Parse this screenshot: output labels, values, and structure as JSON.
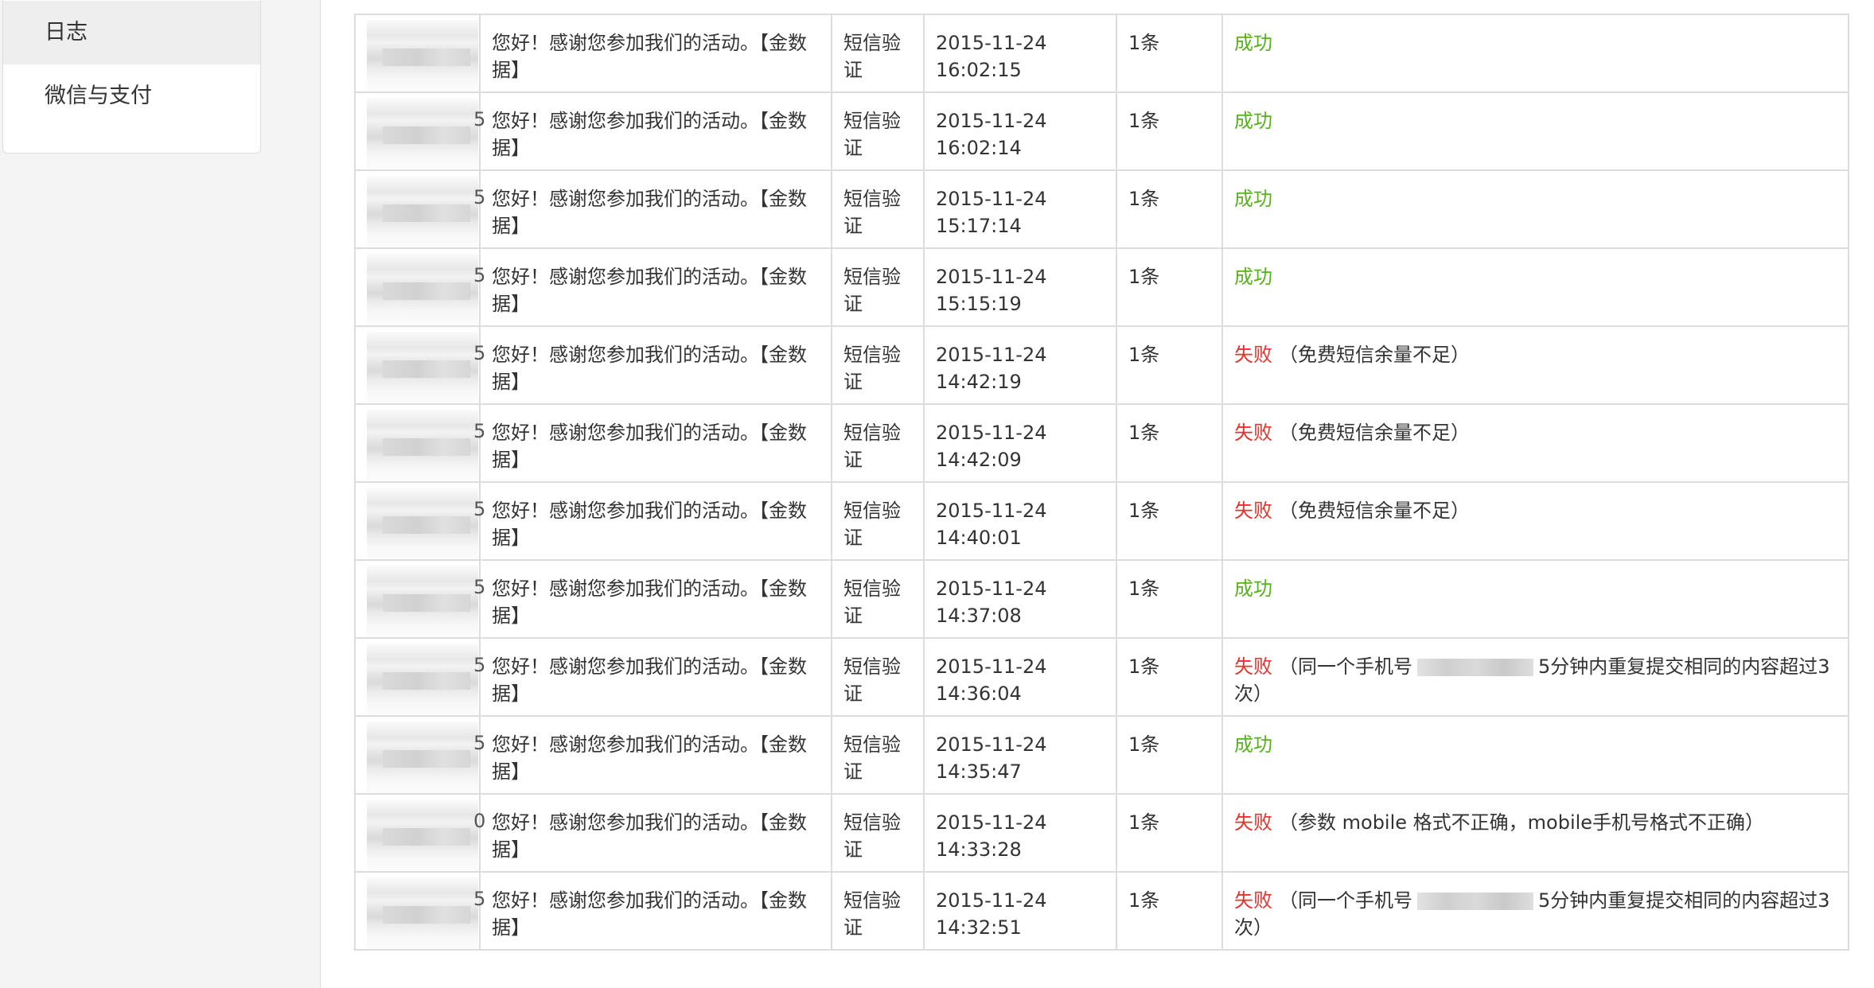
{
  "sidebar": {
    "items": [
      {
        "label": "日志",
        "active": true
      },
      {
        "label": "微信与支付",
        "active": false
      }
    ]
  },
  "colors": {
    "success": "#57b31b",
    "fail": "#e8322b",
    "border": "#dddddd"
  },
  "rows": [
    {
      "phone_tail": "",
      "content": "您好！感谢您参加我们的活动。【金数据】",
      "type": "短信验证",
      "date": "2015-11-24",
      "time": "16:02:15",
      "count": "1条",
      "status": "成功",
      "reason": ""
    },
    {
      "phone_tail": "5",
      "content": "您好！感谢您参加我们的活动。【金数据】",
      "type": "短信验证",
      "date": "2015-11-24",
      "time": "16:02:14",
      "count": "1条",
      "status": "成功",
      "reason": ""
    },
    {
      "phone_tail": "5",
      "content": "您好！感谢您参加我们的活动。【金数据】",
      "type": "短信验证",
      "date": "2015-11-24",
      "time": "15:17:14",
      "count": "1条",
      "status": "成功",
      "reason": ""
    },
    {
      "phone_tail": "5",
      "content": "您好！感谢您参加我们的活动。【金数据】",
      "type": "短信验证",
      "date": "2015-11-24",
      "time": "15:15:19",
      "count": "1条",
      "status": "成功",
      "reason": ""
    },
    {
      "phone_tail": "5",
      "content": "您好！感谢您参加我们的活动。【金数据】",
      "type": "短信验证",
      "date": "2015-11-24",
      "time": "14:42:19",
      "count": "1条",
      "status": "失败",
      "reason": "（免费短信余量不足）"
    },
    {
      "phone_tail": "5",
      "content": "您好！感谢您参加我们的活动。【金数据】",
      "type": "短信验证",
      "date": "2015-11-24",
      "time": "14:42:09",
      "count": "1条",
      "status": "失败",
      "reason": "（免费短信余量不足）"
    },
    {
      "phone_tail": "5",
      "content": "您好！感谢您参加我们的活动。【金数据】",
      "type": "短信验证",
      "date": "2015-11-24",
      "time": "14:40:01",
      "count": "1条",
      "status": "失败",
      "reason": "（免费短信余量不足）"
    },
    {
      "phone_tail": "5",
      "content": "您好！感谢您参加我们的活动。【金数据】",
      "type": "短信验证",
      "date": "2015-11-24",
      "time": "14:37:08",
      "count": "1条",
      "status": "成功",
      "reason": ""
    },
    {
      "phone_tail": "5",
      "content": "您好！感谢您参加我们的活动。【金数据】",
      "type": "短信验证",
      "date": "2015-11-24",
      "time": "14:36:04",
      "count": "1条",
      "status": "失败",
      "reason_pre": "（同一个手机号",
      "reason_post": "5分钟内重复提交相同的内容超过3次）",
      "redacted": true
    },
    {
      "phone_tail": "5",
      "content": "您好！感谢您参加我们的活动。【金数据】",
      "type": "短信验证",
      "date": "2015-11-24",
      "time": "14:35:47",
      "count": "1条",
      "status": "成功",
      "reason": ""
    },
    {
      "phone_tail": "0",
      "content": "您好！感谢您参加我们的活动。【金数据】",
      "type": "短信验证",
      "date": "2015-11-24",
      "time": "14:33:28",
      "count": "1条",
      "status": "失败",
      "reason": "（参数 mobile 格式不正确，mobile手机号格式不正确）"
    },
    {
      "phone_tail": "5",
      "content": "您好！感谢您参加我们的活动。【金数据】",
      "type": "短信验证",
      "date": "2015-11-24",
      "time": "14:32:51",
      "count": "1条",
      "status": "失败",
      "reason_pre": "（同一个手机号",
      "reason_post": "5分钟内重复提交相同的内容超过3次）",
      "redacted": true
    }
  ]
}
